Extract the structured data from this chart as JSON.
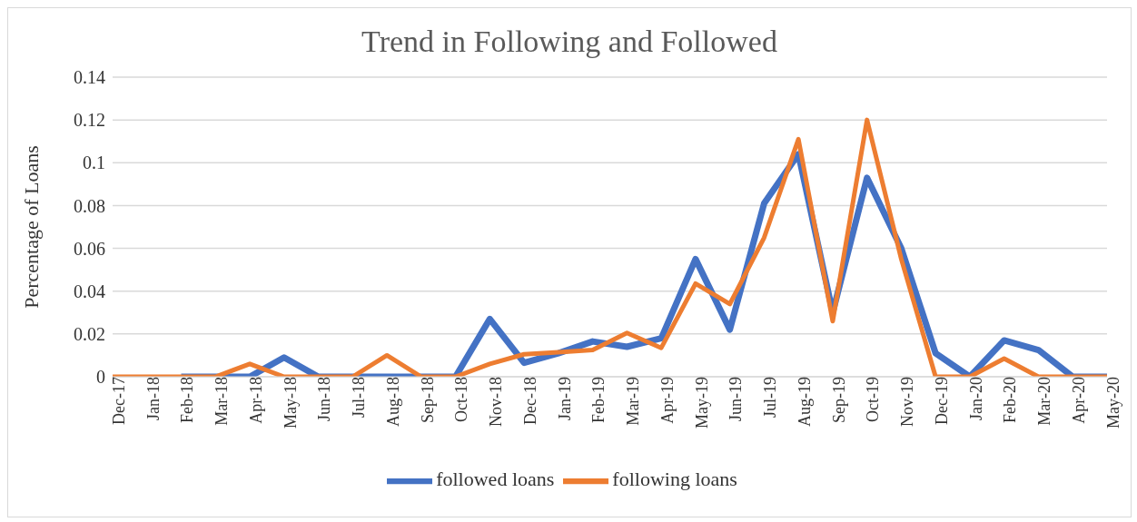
{
  "chart_data": {
    "type": "line",
    "title": "Trend in Following and Followed",
    "ylabel": "Percentage of Loans",
    "categories": [
      "Dec-17",
      "Jan-18",
      "Feb-18",
      "Mar-18",
      "Apr-18",
      "May-18",
      "Jun-18",
      "Jul-18",
      "Aug-18",
      "Sep-18",
      "Oct-18",
      "Nov-18",
      "Dec-18",
      "Jan-19",
      "Feb-19",
      "Mar-19",
      "Apr-19",
      "May-19",
      "Jun-19",
      "Jul-19",
      "Aug-19",
      "Sep-19",
      "Oct-19",
      "Nov-19",
      "Dec-19",
      "Jan-20",
      "Feb-20",
      "Mar-20",
      "Apr-20",
      "May-20"
    ],
    "series": [
      {
        "name": "followed loans",
        "color": "#4472c4",
        "values": [
          null,
          null,
          0,
          0,
          0,
          0.009,
          0,
          0,
          0,
          0,
          0,
          0.027,
          0.0065,
          0.011,
          0.0165,
          0.014,
          0.018,
          0.055,
          0.022,
          0.081,
          0.104,
          0.03,
          0.093,
          0.06,
          0.011,
          0,
          0.017,
          0.0125,
          0,
          0
        ]
      },
      {
        "name": "following loans",
        "color": "#ed7d31",
        "values": [
          0,
          0,
          0,
          0,
          0.006,
          0,
          0,
          0,
          0.01,
          0,
          0,
          0.006,
          0.0105,
          0.0115,
          0.0125,
          0.0205,
          0.0135,
          0.0435,
          0.034,
          0.065,
          0.111,
          0.026,
          0.12,
          0.055,
          0,
          0,
          0.0085,
          0,
          0,
          0
        ]
      }
    ],
    "ylim": [
      0,
      0.14
    ],
    "yticks": [
      0,
      0.02,
      0.04,
      0.06,
      0.08,
      0.1,
      0.12,
      0.14
    ],
    "grid": "y",
    "legend": "bottom",
    "marker": "none",
    "line_style": "solid"
  }
}
